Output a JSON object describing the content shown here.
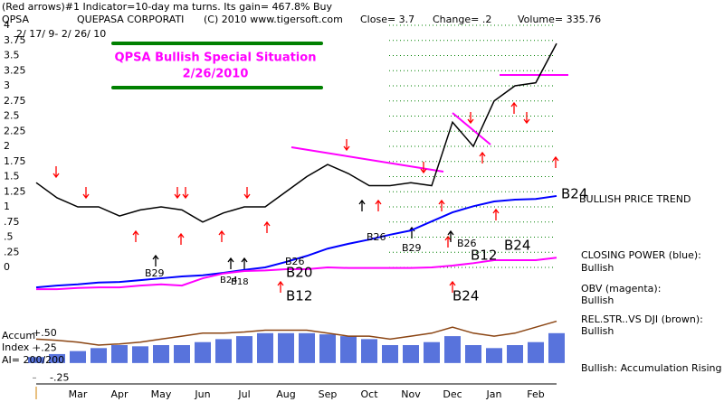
{
  "chart_data": [
    {
      "type": "line",
      "header": "(Red arrows)#1 Indicator=10-day ma turns. Its gain= 467.8% Buy",
      "symbol": "QPSA",
      "company": "QUEPASA CORPORATI",
      "copyright": "(C) 2010 www.tigersoft.com",
      "close": "Close= 3.7",
      "change": "Change= .2",
      "volume": "Volume= 335.76",
      "date_range": "2/ 17/ 9- 2/ 26/ 10",
      "annotation": [
        "QPSA  Bullish Special Situation",
        "2/26/2010"
      ],
      "trend": "BULLISH PRICE TREND",
      "signals": [
        "B29",
        "B26",
        "B20",
        "B12",
        "B24",
        "B18",
        "B26",
        "B29",
        "B26",
        "B12",
        "B24",
        "B24",
        "B24"
      ],
      "categories": [
        null,
        null,
        "Mar",
        null,
        "Apr",
        null,
        "May",
        null,
        "Jun",
        null,
        "Jul",
        null,
        "Aug",
        null,
        "Sep",
        null,
        "Oct",
        null,
        "Nov",
        null,
        "Dec",
        null,
        "Jan",
        null,
        "Feb",
        null
      ],
      "values": [
        1.4,
        1.15,
        1.0,
        1.0,
        0.85,
        0.95,
        1.0,
        0.95,
        0.75,
        0.9,
        1.0,
        1.0,
        1.25,
        1.5,
        1.7,
        1.55,
        1.35,
        1.35,
        1.4,
        1.35,
        2.4,
        2.0,
        2.75,
        3.0,
        3.05,
        3.7
      ],
      "color": "#000000",
      "series": [
        {
          "name": "CLOSING POWER (blue):",
          "status": "Bullish",
          "color": "#0000ff",
          "values": [
            -0.33,
            -0.3,
            -0.28,
            -0.25,
            -0.24,
            -0.21,
            -0.18,
            -0.15,
            -0.13,
            -0.09,
            -0.04,
            0,
            0.09,
            0.19,
            0.31,
            0.39,
            0.46,
            0.54,
            0.61,
            0.76,
            0.91,
            1.01,
            1.09,
            1.12,
            1.13,
            1.18
          ]
        },
        {
          "name": "OBV (magenta):",
          "status": "Bullish",
          "color": "#ff00ff",
          "values": [
            -0.36,
            -0.36,
            -0.34,
            -0.33,
            -0.33,
            -0.3,
            -0.28,
            -0.3,
            -0.18,
            -0.1,
            -0.06,
            -0.05,
            -0.03,
            -0.03,
            0,
            -0.01,
            -0.01,
            -0.01,
            -0.01,
            0,
            0.03,
            0.07,
            0.12,
            0.12,
            0.12,
            0.16
          ]
        }
      ],
      "ylim": [
        -0.5,
        4
      ],
      "yticks": [
        4,
        3.75,
        3.5,
        3.25,
        3,
        2.75,
        2.5,
        2.25,
        2,
        1.75,
        1.5,
        1.25,
        1,
        {
          "value": 0.75,
          "label": ".75"
        },
        {
          "value": 0.5,
          "label": ".5"
        },
        {
          "value": 0.25,
          "label": ".25"
        },
        0
      ],
      "grid": true
    },
    {
      "type": "bar",
      "label_lines": [
        "Accum",
        "Index",
        "AI= 200/200"
      ],
      "status_text": "Bullish: Accumulation Rising",
      "values": [
        0.1,
        0.15,
        0.2,
        0.25,
        0.3,
        0.28,
        0.3,
        0.3,
        0.35,
        0.4,
        0.45,
        0.5,
        0.5,
        0.5,
        0.48,
        0.45,
        0.4,
        0.3,
        0.3,
        0.35,
        0.45,
        0.3,
        0.25,
        0.3,
        0.35,
        0.5
      ],
      "color": "#3b5bd6",
      "series": [
        {
          "name": "REL.STR..VS DJI (brown):",
          "status": "Bullish",
          "color": "#8b4513",
          "values": [
            0.4,
            0.38,
            0.35,
            0.3,
            0.32,
            0.35,
            0.4,
            0.45,
            0.5,
            0.5,
            0.52,
            0.55,
            0.55,
            0.55,
            0.5,
            0.45,
            0.45,
            0.4,
            0.45,
            0.5,
            0.6,
            0.5,
            0.45,
            0.5,
            0.6,
            0.7
          ]
        }
      ],
      "ylim": [
        -0.35,
        0.89
      ],
      "yticks": [
        {
          "value": 0.5,
          "label": "+.50"
        },
        {
          "value": 0.25,
          "label": "+.25"
        },
        {
          "value": -0.25,
          "label": "-.25"
        }
      ]
    }
  ]
}
